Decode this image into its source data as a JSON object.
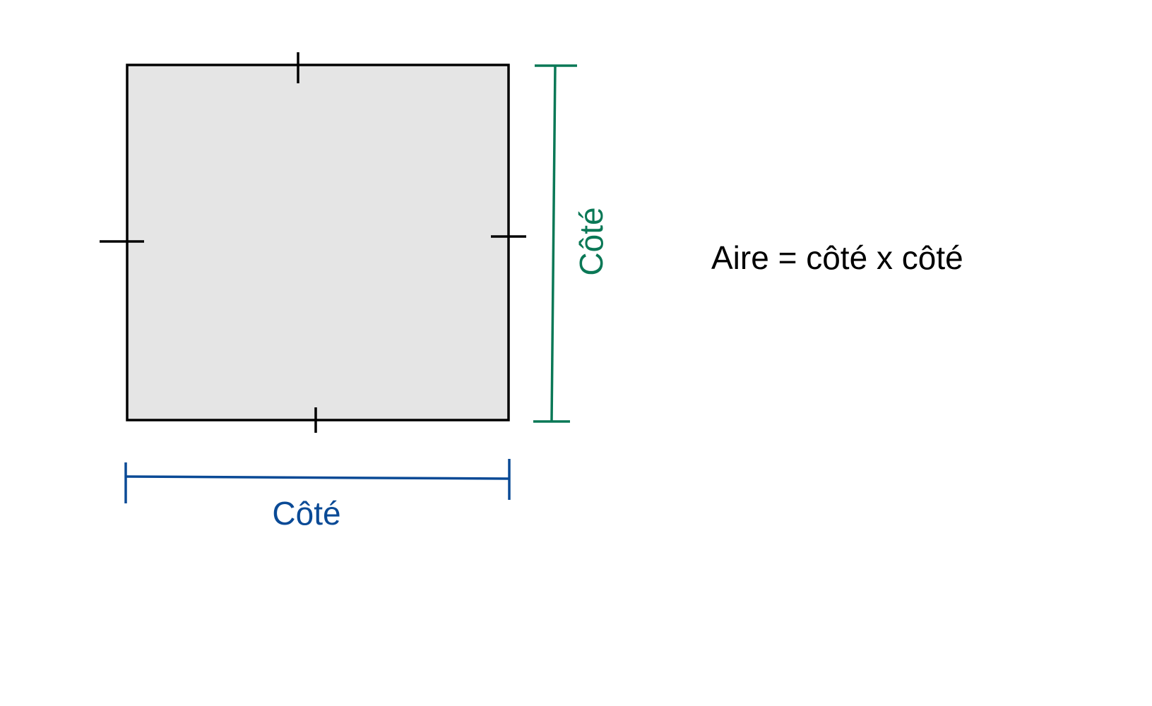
{
  "diagram": {
    "bottom_label": "Côté",
    "side_label": "Côté",
    "formula": "Aire = côté x côté"
  },
  "colors": {
    "square_fill": "#e5e5e5",
    "square_stroke": "#000000",
    "bottom_dimension": "#0a4a96",
    "side_dimension": "#0a7856",
    "text": "#000000"
  }
}
